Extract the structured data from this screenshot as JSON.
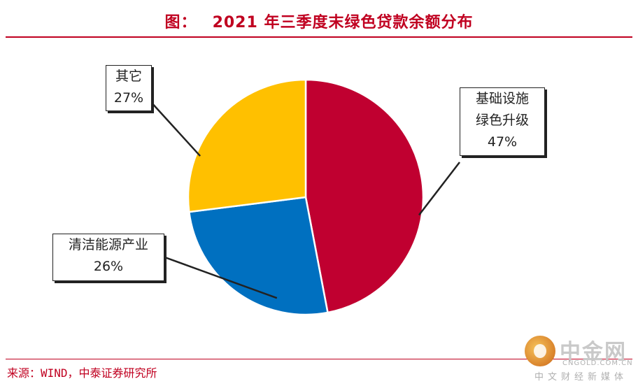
{
  "header": {
    "prefix": "图：",
    "title": "2021 年三季度末绿色贷款余额分布"
  },
  "source": "来源：WIND，中泰证券研究所",
  "watermark": {
    "name": "中金网",
    "site": "CNGOLD.COM.CN",
    "tagline": "中文财经新媒体"
  },
  "chart_data": {
    "type": "pie",
    "title": "2021 年三季度末绿色贷款余额分布",
    "slices": [
      {
        "line1": "基础设施",
        "line2": "绿色升级",
        "value": 47,
        "pct": "47%",
        "color": "#c00030"
      },
      {
        "line1": "清洁能源产业",
        "line2": "",
        "value": 26,
        "pct": "26%",
        "color": "#0070c0"
      },
      {
        "line1": "其它",
        "line2": "",
        "value": 27,
        "pct": "27%",
        "color": "#ffc000"
      }
    ]
  }
}
